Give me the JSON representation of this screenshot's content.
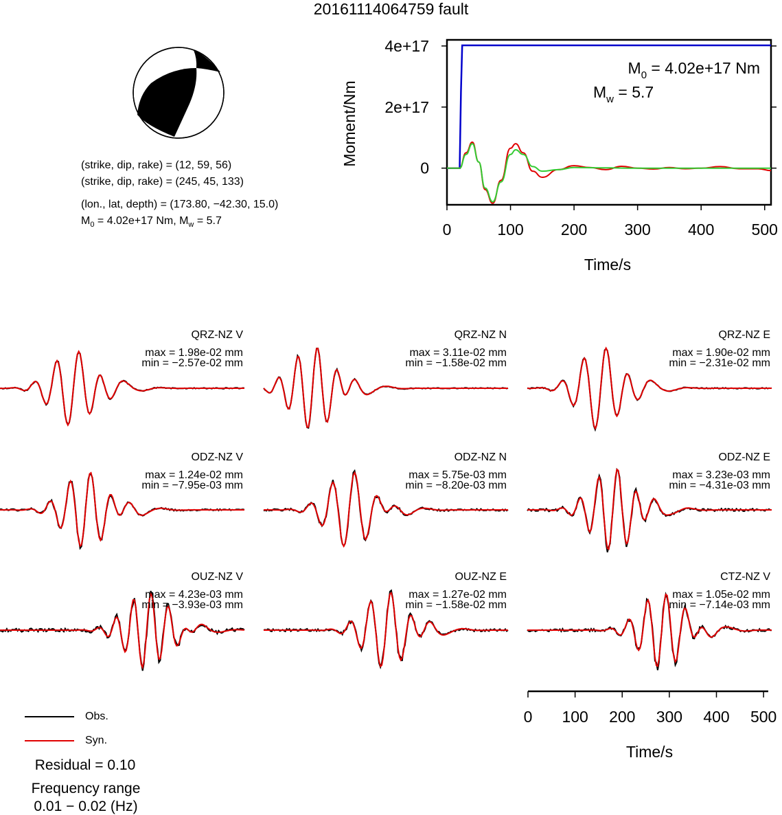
{
  "title": "20161114064759 fault",
  "mechanism": {
    "nodal_plane_1": "(strike, dip, rake) = (12, 59, 56)",
    "nodal_plane_2": "(strike, dip, rake) = (245, 45, 133)",
    "location": "(lon., lat, depth) = (173.80, −42.30, 15.0)",
    "m0_prefix": "M",
    "m0_sub": "0",
    "m0_rest": " = 4.02e+17 Nm, M",
    "mw_sub": "w",
    "mw_rest": " = 5.7"
  },
  "stf_panel": {
    "m0_prefix": "M",
    "m0_sub": "0",
    "m0_value": " = 4.02e+17 Nm",
    "mw_prefix": "M",
    "mw_sub": "w",
    "mw_value": " = 5.7"
  },
  "colors": {
    "observed": "#000000",
    "synthetic": "#e00000",
    "moment_cumulative": "#0000cc",
    "moment_rate_green": "#33cc33",
    "beachball_fill": "#000000"
  },
  "chart_data": [
    {
      "type": "line",
      "xlabel": "Time/s",
      "ylabel": "Moment/Nm",
      "xlim": [
        0,
        510
      ],
      "ylim": [
        -1.2e+17,
        4.2e+17
      ],
      "xticks": [
        0,
        100,
        200,
        300,
        400,
        500
      ],
      "yticks": [
        0,
        2e+17,
        4e+17
      ],
      "ytick_labels": [
        "0",
        "2e+17",
        "4e+17"
      ],
      "series": [
        {
          "color": "blue",
          "kind": "cumulative_moment",
          "x": [
            0,
            20,
            22,
            24,
            510
          ],
          "y": [
            0,
            0,
            2.5e+17,
            4.02e+17,
            4.02e+17
          ]
        },
        {
          "color": "red",
          "x": [
            0,
            20,
            30,
            40,
            50,
            60,
            72,
            85,
            100,
            108,
            120,
            135,
            150,
            175,
            200,
            225,
            250,
            275,
            300,
            325,
            350,
            375,
            400,
            430,
            460,
            490,
            510
          ],
          "y": [
            0,
            0,
            5e+16,
            8.5e+16,
            2e+16,
            -7e+16,
            -1.15e+17,
            -4e+16,
            6.5e+16,
            8e+16,
            5e+16,
            -1e+16,
            -3e+16,
            -5000000000000000.0,
            8000000000000000.0,
            2000000000000000.0,
            -5000000000000000.0,
            6000000000000000.0,
            0.0,
            -3000000000000000.0,
            2000000000000000.0,
            -2000000000000000.0,
            0.0,
            5000000000000000.0,
            -2000000000000000.0,
            -2000000000000000.0,
            -8000000000000000.0
          ]
        },
        {
          "color": "green",
          "x": [
            0,
            20,
            30,
            40,
            50,
            60,
            72,
            85,
            100,
            108,
            120,
            135,
            150,
            175,
            200,
            240,
            300,
            400,
            510
          ],
          "y": [
            0,
            0,
            4.5e+16,
            8e+16,
            2e+16,
            -6.5e+16,
            -1.1e+17,
            -4.5e+16,
            4.5e+16,
            6e+16,
            4.5e+16,
            5000000000000000.0,
            -1e+16,
            -5000000000000000.0,
            2000000000000000.0,
            1000000000000000.0,
            0.0,
            0.0,
            0.0
          ]
        }
      ]
    },
    {
      "type": "line",
      "xlabel": "Time/s",
      "xlim": [
        0,
        510
      ],
      "xticks": [
        0,
        100,
        200,
        300,
        400,
        500
      ],
      "traces": [
        {
          "station": "QRZ-NZ V",
          "max": "max = 1.98e-02 mm",
          "min": "min = −2.57e-02 mm"
        },
        {
          "station": "QRZ-NZ N",
          "max": "max = 3.11e-02 mm",
          "min": "min = −1.58e-02 mm"
        },
        {
          "station": "QRZ-NZ E",
          "max": "max = 1.90e-02 mm",
          "min": "min = −2.31e-02 mm"
        },
        {
          "station": "ODZ-NZ V",
          "max": "max = 1.24e-02 mm",
          "min": "min = −7.95e-03 mm"
        },
        {
          "station": "ODZ-NZ N",
          "max": "max = 5.75e-03 mm",
          "min": "min = −8.20e-03 mm"
        },
        {
          "station": "ODZ-NZ E",
          "max": "max = 3.23e-03 mm",
          "min": "min = −4.31e-03 mm"
        },
        {
          "station": "OUZ-NZ V",
          "max": "max = 4.23e-03 mm",
          "min": "min = −3.93e-03 mm"
        },
        {
          "station": "OUZ-NZ E",
          "max": "max = 1.27e-02 mm",
          "min": "min = −1.58e-02 mm"
        },
        {
          "station": "CTZ-NZ V",
          "max": "max = 1.05e-02 mm",
          "min": "min = −7.14e-03 mm"
        }
      ]
    }
  ],
  "legend": {
    "observed_label": "Obs.",
    "synthetic_label": "Syn."
  },
  "footer": {
    "residual": "Residual = 0.10",
    "freq_title": "Frequency range",
    "freq_range": "0.01 − 0.02 (Hz)"
  }
}
